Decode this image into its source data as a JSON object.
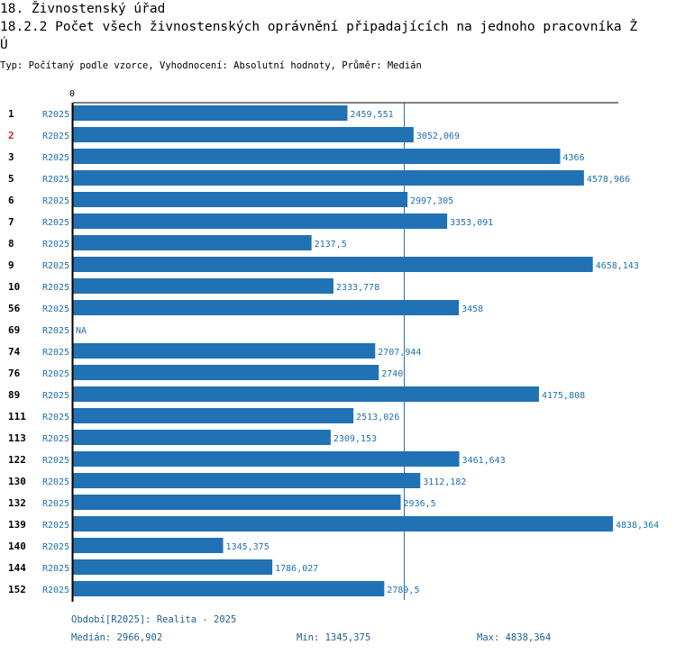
{
  "header": {
    "title_line1": "18. Živnostenský úřad",
    "title_line2": "18.2.2 Počet všech živnostenských oprávnění připadajících na jednoho pracovníka Ž",
    "title_line3": "Ú",
    "subtitle": "Typ: Počítaný podle vzorce, Vyhodnocení: Absolutní hodnoty, Průměr: Medián"
  },
  "colors": {
    "bar": "#2171b5",
    "label_blue": "#1f6fb0",
    "highlight_red": "#d62020",
    "axis": "#000000",
    "median_line": "#2171b5"
  },
  "chart_data": {
    "type": "bar",
    "orientation": "horizontal",
    "axis_zero_label": "0",
    "x_max": 4838.364,
    "median": 2966.902,
    "highlight_index": 1,
    "rows": [
      {
        "id": "1",
        "period": "R2025",
        "value": 2459.551,
        "label": "2459,551"
      },
      {
        "id": "2",
        "period": "R2025",
        "value": 3052.069,
        "label": "3052,069"
      },
      {
        "id": "3",
        "period": "R2025",
        "value": 4366,
        "label": "4366"
      },
      {
        "id": "5",
        "period": "R2025",
        "value": 4578.966,
        "label": "4578,966"
      },
      {
        "id": "6",
        "period": "R2025",
        "value": 2997.305,
        "label": "2997,305"
      },
      {
        "id": "7",
        "period": "R2025",
        "value": 3353.091,
        "label": "3353,091"
      },
      {
        "id": "8",
        "period": "R2025",
        "value": 2137.5,
        "label": "2137,5"
      },
      {
        "id": "9",
        "period": "R2025",
        "value": 4658.143,
        "label": "4658,143"
      },
      {
        "id": "10",
        "period": "R2025",
        "value": 2333.778,
        "label": "2333,778"
      },
      {
        "id": "56",
        "period": "R2025",
        "value": 3458,
        "label": "3458"
      },
      {
        "id": "69",
        "period": "R2025",
        "value": null,
        "label": "NA"
      },
      {
        "id": "74",
        "period": "R2025",
        "value": 2707.944,
        "label": "2707,944"
      },
      {
        "id": "76",
        "period": "R2025",
        "value": 2740,
        "label": "2740"
      },
      {
        "id": "89",
        "period": "R2025",
        "value": 4175.808,
        "label": "4175,808"
      },
      {
        "id": "111",
        "period": "R2025",
        "value": 2513.026,
        "label": "2513,026"
      },
      {
        "id": "113",
        "period": "R2025",
        "value": 2309.153,
        "label": "2309,153"
      },
      {
        "id": "122",
        "period": "R2025",
        "value": 3461.643,
        "label": "3461,643"
      },
      {
        "id": "130",
        "period": "R2025",
        "value": 3112.182,
        "label": "3112,182"
      },
      {
        "id": "132",
        "period": "R2025",
        "value": 2936.5,
        "label": "2936,5"
      },
      {
        "id": "139",
        "period": "R2025",
        "value": 4838.364,
        "label": "4838,364"
      },
      {
        "id": "140",
        "period": "R2025",
        "value": 1345.375,
        "label": "1345,375"
      },
      {
        "id": "144",
        "period": "R2025",
        "value": 1786.027,
        "label": "1786,027"
      },
      {
        "id": "152",
        "period": "R2025",
        "value": 2789.5,
        "label": "2789,5"
      }
    ]
  },
  "footer": {
    "period_note": "Období[R2025]: Realita - 2025",
    "median": "Medián: 2966,902",
    "min": "Min: 1345,375",
    "max": "Max: 4838,364"
  }
}
